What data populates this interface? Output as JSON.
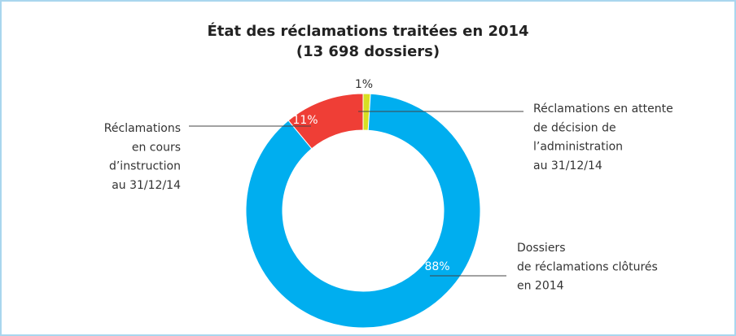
{
  "chart_data": {
    "type": "donut",
    "title": [
      "État des réclamations traitées en 2014",
      "(13 698 dossiers)"
    ],
    "categories": [
      [
        "Réclamations en attente",
        "de décision de",
        "l’administration",
        "au 31/12/14"
      ],
      [
        "Dossiers",
        "de réclamations clôturés",
        "en 2014"
      ],
      [
        "Réclamations",
        "en cours",
        "d’instruction",
        "au 31/12/14"
      ]
    ],
    "values": [
      1,
      88,
      11
    ],
    "value_labels": [
      "1%",
      "88%",
      "11%"
    ],
    "colors": [
      "#d7df23",
      "#00aeef",
      "#ef3e36"
    ]
  }
}
